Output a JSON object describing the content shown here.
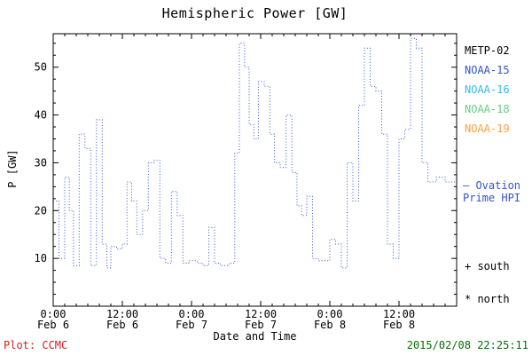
{
  "chart_data": {
    "type": "line",
    "style": "stepped dotted line",
    "title": "Hemispheric Power [GW]",
    "xlabel": "Date and Time",
    "ylabel": "P [GW]",
    "x_unit": "hours from Feb 6 0:00",
    "xlim": [
      0,
      70
    ],
    "ylim": [
      0,
      57
    ],
    "grid": false,
    "legend_position": "right",
    "yticks": [
      10,
      20,
      30,
      40,
      50
    ],
    "xticks": [
      {
        "x": 0,
        "label": "0:00",
        "sub": "Feb 6"
      },
      {
        "x": 12,
        "label": "12:00",
        "sub": "Feb 6"
      },
      {
        "x": 24,
        "label": "0:00",
        "sub": "Feb 7"
      },
      {
        "x": 36,
        "label": "12:00",
        "sub": "Feb 7"
      },
      {
        "x": 48,
        "label": "0:00",
        "sub": "Feb 8"
      },
      {
        "x": 60,
        "label": "12:00",
        "sub": "Feb 8"
      }
    ],
    "series": [
      {
        "name": "Ovation Prime HPI",
        "color": "#3355cc",
        "points": [
          [
            0,
            22
          ],
          [
            1,
            10
          ],
          [
            2,
            27
          ],
          [
            2.8,
            20
          ],
          [
            3.5,
            8.5
          ],
          [
            4.5,
            36
          ],
          [
            5.5,
            33
          ],
          [
            6.5,
            8.5
          ],
          [
            7.5,
            39
          ],
          [
            8.5,
            13
          ],
          [
            9.3,
            8
          ],
          [
            10,
            12.5
          ],
          [
            11,
            12
          ],
          [
            12,
            13
          ],
          [
            12.8,
            26
          ],
          [
            13.6,
            22
          ],
          [
            14.5,
            15
          ],
          [
            15.5,
            20
          ],
          [
            16.5,
            30
          ],
          [
            17.5,
            30.5
          ],
          [
            18.5,
            10
          ],
          [
            19.5,
            9
          ],
          [
            20.5,
            24
          ],
          [
            21.5,
            19
          ],
          [
            22.5,
            9
          ],
          [
            23.5,
            9.5
          ],
          [
            25,
            9
          ],
          [
            26,
            8.5
          ],
          [
            27,
            16.5
          ],
          [
            28,
            9
          ],
          [
            29,
            8.5
          ],
          [
            30.5,
            9
          ],
          [
            31.5,
            32
          ],
          [
            32.3,
            55
          ],
          [
            33.2,
            50
          ],
          [
            34,
            38
          ],
          [
            34.8,
            35
          ],
          [
            35.6,
            47
          ],
          [
            36.6,
            46
          ],
          [
            37.6,
            36
          ],
          [
            38.4,
            30
          ],
          [
            39.4,
            29
          ],
          [
            40.4,
            40
          ],
          [
            41.4,
            28
          ],
          [
            42.3,
            21
          ],
          [
            43.1,
            19
          ],
          [
            44,
            23
          ],
          [
            45,
            10
          ],
          [
            46,
            9.5
          ],
          [
            47,
            9.5
          ],
          [
            48,
            14
          ],
          [
            49,
            13
          ],
          [
            50,
            8
          ],
          [
            51,
            30
          ],
          [
            52,
            22
          ],
          [
            53,
            42
          ],
          [
            54,
            54
          ],
          [
            55,
            46
          ],
          [
            56,
            45
          ],
          [
            57,
            36
          ],
          [
            58,
            13
          ],
          [
            59,
            10
          ],
          [
            60,
            35
          ],
          [
            61,
            37
          ],
          [
            62,
            56
          ],
          [
            63,
            54
          ],
          [
            64,
            30
          ],
          [
            65,
            26
          ],
          [
            66.5,
            27
          ],
          [
            68,
            26
          ],
          [
            70,
            26
          ]
        ]
      }
    ]
  },
  "legend": {
    "items": [
      {
        "label": "METP-02",
        "color": "#000000"
      },
      {
        "label": "NOAA-15",
        "color": "#3355cc"
      },
      {
        "label": "NOAA-16",
        "color": "#33bbee"
      },
      {
        "label": "NOAA-18",
        "color": "#66cc88"
      },
      {
        "label": "NOAA-19",
        "color": "#ffa040"
      }
    ],
    "line_label_1": "— Ovation",
    "line_label_2": "Prime HPI",
    "line_color": "#3355cc",
    "south": "+ south",
    "north": "* north"
  },
  "footer": {
    "left": "Plot: CCMC",
    "left_color": "#cc2222",
    "right": "2015/02/08 22:25:11",
    "right_color": "#0a6b0a"
  }
}
